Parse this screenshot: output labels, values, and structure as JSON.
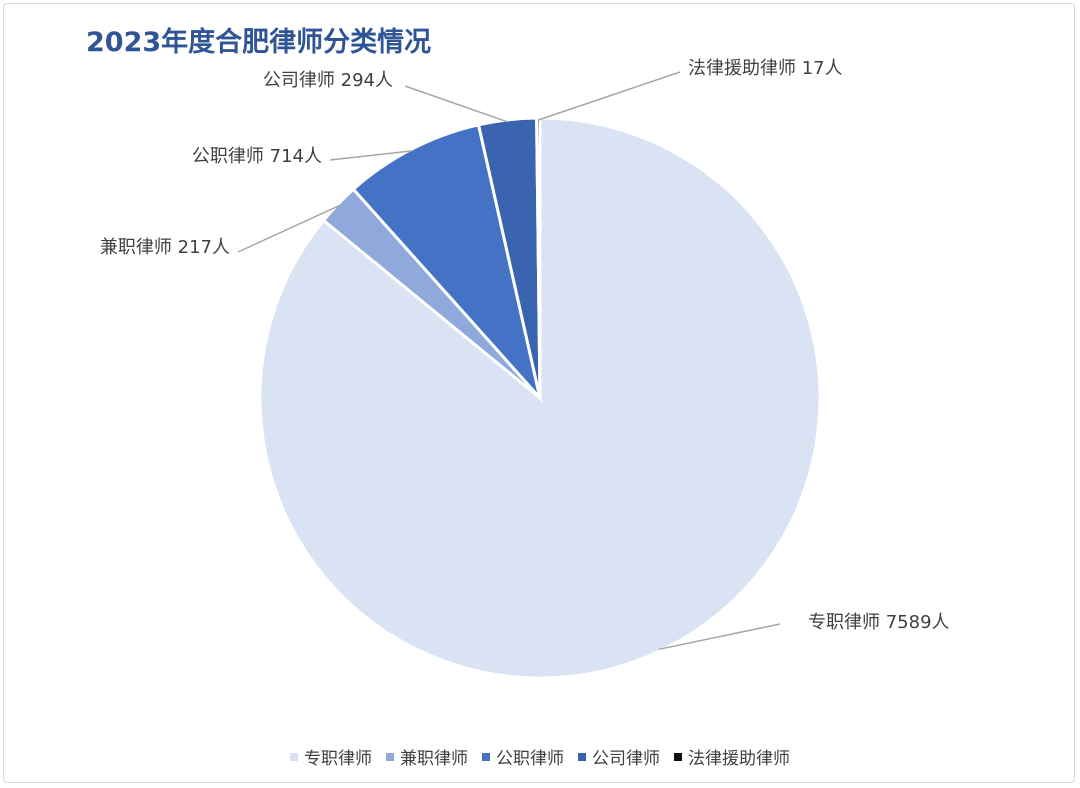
{
  "chart_data": {
    "type": "pie",
    "title": "2023年度合肥律师分类情况",
    "slices": [
      {
        "label": "专职律师",
        "value": 7589,
        "data_label": "专职律师 7589人",
        "color": "#dae3f3"
      },
      {
        "label": "兼职律师",
        "value": 217,
        "data_label": "兼职律师 217人",
        "color": "#8fa9dc"
      },
      {
        "label": "公职律师",
        "value": 714,
        "data_label": "公职律师 714人",
        "color": "#4472c4"
      },
      {
        "label": "公司律师",
        "value": 294,
        "data_label": "公司律师 294人",
        "color": "#3a63b0"
      },
      {
        "label": "法律援助律师",
        "value": 17,
        "data_label": "法律援助律师 17人",
        "color": "#111111"
      }
    ],
    "legend_position": "bottom"
  }
}
